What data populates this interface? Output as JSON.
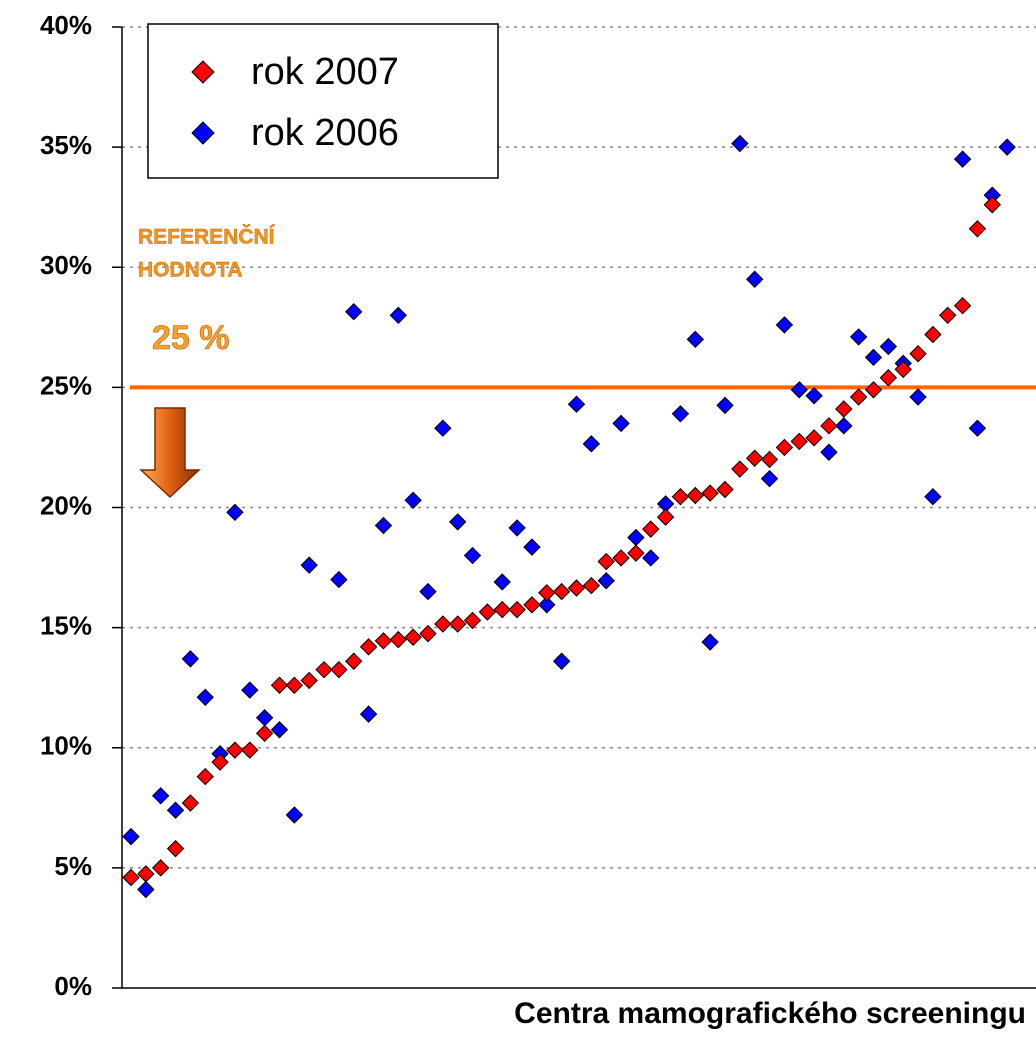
{
  "chart_data": {
    "type": "scatter",
    "x_label": "Centra mamografického screeningu",
    "categories": [
      null,
      null,
      null,
      null,
      null,
      null,
      null,
      null,
      null,
      null,
      null,
      null,
      null,
      null,
      null,
      null,
      null,
      null,
      null,
      null,
      null,
      null,
      null,
      null,
      null,
      null,
      null,
      null,
      null,
      null,
      null,
      null,
      null,
      null,
      null,
      null,
      null,
      null,
      null,
      null,
      null,
      null,
      null,
      null,
      null,
      null,
      null,
      null,
      null,
      null,
      null,
      null,
      null,
      null,
      null,
      null,
      null,
      null,
      null,
      null
    ],
    "series": [
      {
        "name": "rok 2007",
        "color": "#ff0000",
        "values": [
          4.6,
          4.75,
          5.0,
          5.8,
          7.7,
          8.8,
          9.4,
          9.9,
          9.9,
          10.6,
          12.6,
          12.6,
          12.8,
          13.25,
          13.25,
          13.6,
          14.2,
          14.45,
          14.5,
          14.6,
          14.75,
          15.15,
          15.15,
          15.3,
          15.65,
          15.75,
          15.75,
          15.95,
          16.45,
          16.5,
          16.65,
          16.75,
          17.75,
          17.9,
          18.1,
          19.1,
          19.6,
          20.45,
          20.5,
          20.6,
          20.75,
          21.6,
          22.05,
          22.0,
          22.5,
          22.75,
          22.9,
          23.4,
          24.1,
          24.6,
          24.9,
          25.4,
          25.75,
          26.4,
          27.2,
          28.0,
          28.4,
          31.6,
          32.6,
          null
        ]
      },
      {
        "name": "rok 2006",
        "color": "#0000ff",
        "values": [
          6.3,
          4.1,
          8.0,
          7.4,
          13.7,
          12.1,
          9.75,
          19.8,
          12.4,
          11.25,
          10.75,
          7.2,
          17.6,
          null,
          17.0,
          28.15,
          11.4,
          19.25,
          28.0,
          20.3,
          16.5,
          23.3,
          19.4,
          18.0,
          null,
          16.9,
          19.15,
          18.35,
          15.95,
          13.6,
          24.3,
          22.65,
          16.95,
          23.5,
          18.75,
          17.9,
          20.15,
          23.9,
          27.0,
          14.4,
          24.25,
          35.15,
          29.5,
          21.2,
          27.6,
          24.9,
          24.65,
          22.3,
          23.4,
          27.1,
          26.25,
          26.7,
          26.0,
          24.6,
          20.45,
          null,
          34.5,
          23.3,
          33.0,
          35.0
        ]
      }
    ],
    "ylim": [
      0,
      40
    ],
    "yticks": [
      {
        "value": 0,
        "label": "0%"
      },
      {
        "value": 5,
        "label": "5%"
      },
      {
        "value": 10,
        "label": "10%"
      },
      {
        "value": 15,
        "label": "15%"
      },
      {
        "value": 20,
        "label": "20%"
      },
      {
        "value": 25,
        "label": "25%"
      },
      {
        "value": 30,
        "label": "30%"
      },
      {
        "value": 35,
        "label": "35%"
      },
      {
        "value": 40,
        "label": "40%"
      }
    ],
    "grid": true,
    "reference_line": {
      "value": 25,
      "color": "#ff6600",
      "label_lines": [
        "REFERENČNÍ",
        "HODNOTA"
      ],
      "value_label": "25 %"
    },
    "legend": "upper left"
  }
}
